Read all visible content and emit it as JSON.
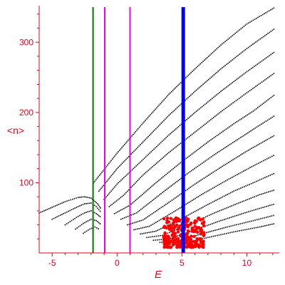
{
  "chart_data": {
    "type": "scatter",
    "title": "",
    "xlabel": "E",
    "ylabel": "<n>",
    "xlim": [
      -6.0,
      12.5
    ],
    "ylim": [
      0,
      352
    ],
    "xticks": [
      -5,
      0,
      5,
      10
    ],
    "yticks": [
      100,
      200,
      300
    ],
    "grid": false,
    "legend": "none",
    "colors": {
      "axis": "#e8001c",
      "points": "#000000",
      "highlight_points": "#ff0000",
      "line_green": "#007700",
      "line_magenta": "#ee00ee",
      "line_blue": "#0000ff"
    },
    "vertical_lines": [
      {
        "x": -1.85,
        "color": "#007700",
        "width": 2
      },
      {
        "x": -0.95,
        "color": "#ee00ee",
        "width": 2
      },
      {
        "x": 1.0,
        "color": "#ee00ee",
        "width": 2
      },
      {
        "x": 5.1,
        "color": "#0000ff",
        "width": 5
      }
    ],
    "series": [
      {
        "values": [
          [
            -1.8,
            100
          ],
          [
            0,
            142
          ],
          [
            2,
            185
          ],
          [
            4,
            226
          ],
          [
            6,
            262
          ],
          [
            8,
            296
          ],
          [
            10,
            326
          ],
          [
            12.2,
            350
          ]
        ]
      },
      {
        "values": [
          [
            -1.4,
            88
          ],
          [
            0,
            120
          ],
          [
            2,
            158
          ],
          [
            4,
            196
          ],
          [
            6,
            230
          ],
          [
            8,
            262
          ],
          [
            10,
            291
          ],
          [
            12.2,
            320
          ]
        ]
      },
      {
        "values": [
          [
            -1.0,
            76
          ],
          [
            0,
            98
          ],
          [
            2,
            133
          ],
          [
            4,
            168
          ],
          [
            6,
            200
          ],
          [
            8,
            230
          ],
          [
            10,
            258
          ],
          [
            12.2,
            287
          ]
        ]
      },
      {
        "values": [
          [
            -0.6,
            66
          ],
          [
            0.5,
            82
          ],
          [
            2,
            111
          ],
          [
            4,
            143
          ],
          [
            6,
            172
          ],
          [
            8,
            201
          ],
          [
            10,
            228
          ],
          [
            12.2,
            257
          ]
        ]
      },
      {
        "values": [
          [
            -0.2,
            56
          ],
          [
            1,
            68
          ],
          [
            3,
            100
          ],
          [
            5,
            130
          ],
          [
            7,
            158
          ],
          [
            9,
            184
          ],
          [
            10.5,
            202
          ],
          [
            12.2,
            226
          ]
        ]
      },
      {
        "values": [
          [
            0.3,
            48
          ],
          [
            1.5,
            57
          ],
          [
            3.5,
            86
          ],
          [
            5.5,
            114
          ],
          [
            7.5,
            140
          ],
          [
            9.5,
            164
          ],
          [
            11,
            182
          ],
          [
            12.2,
            196
          ]
        ]
      },
      {
        "values": [
          [
            0.8,
            40
          ],
          [
            2,
            47
          ],
          [
            4,
            72
          ],
          [
            6,
            98
          ],
          [
            8,
            122
          ],
          [
            10,
            145
          ],
          [
            12.2,
            168
          ]
        ]
      },
      {
        "values": [
          [
            1.3,
            33
          ],
          [
            2.5,
            38
          ],
          [
            4.5,
            60
          ],
          [
            6.5,
            83
          ],
          [
            8.5,
            104
          ],
          [
            10.5,
            124
          ],
          [
            12.2,
            140
          ]
        ]
      },
      {
        "values": [
          [
            1.8,
            27
          ],
          [
            3,
            31
          ],
          [
            5,
            49
          ],
          [
            7,
            69
          ],
          [
            9,
            88
          ],
          [
            11,
            104
          ],
          [
            12.2,
            114
          ]
        ]
      },
      {
        "values": [
          [
            2.3,
            22
          ],
          [
            3.5,
            25
          ],
          [
            5.5,
            40
          ],
          [
            7.5,
            57
          ],
          [
            9.5,
            72
          ],
          [
            11,
            83
          ],
          [
            12.2,
            90
          ]
        ]
      },
      {
        "values": [
          [
            2.8,
            18
          ],
          [
            4,
            20
          ],
          [
            6,
            33
          ],
          [
            8,
            46
          ],
          [
            10,
            58
          ],
          [
            12.2,
            70
          ]
        ]
      },
      {
        "values": [
          [
            3.3,
            15
          ],
          [
            4.5,
            16
          ],
          [
            6.5,
            27
          ],
          [
            8.5,
            37
          ],
          [
            10.5,
            46
          ],
          [
            12.2,
            54
          ]
        ]
      },
      {
        "values": [
          [
            3.8,
            12
          ],
          [
            5,
            13
          ],
          [
            7,
            22
          ],
          [
            9,
            30
          ],
          [
            11,
            37
          ],
          [
            12.2,
            42
          ]
        ]
      },
      {
        "values": [
          [
            -6,
            57
          ],
          [
            -5,
            65
          ],
          [
            -4,
            73
          ],
          [
            -3,
            79
          ],
          [
            -2.5,
            80
          ],
          [
            -2,
            78
          ],
          [
            -1.5,
            70
          ],
          [
            -1.2,
            62
          ]
        ]
      },
      {
        "values": [
          [
            -5,
            48
          ],
          [
            -4,
            57
          ],
          [
            -3,
            66
          ],
          [
            -2.5,
            70
          ],
          [
            -2,
            71
          ],
          [
            -1.6,
            66
          ],
          [
            -1.2,
            57
          ]
        ]
      },
      {
        "values": [
          [
            -4,
            40
          ],
          [
            -3,
            52
          ],
          [
            -2.5,
            57
          ],
          [
            -2,
            60
          ],
          [
            -1.6,
            56
          ],
          [
            -1.2,
            50
          ]
        ]
      },
      {
        "values": [
          [
            -3.2,
            34
          ],
          [
            -2.6,
            42
          ],
          [
            -2,
            48
          ],
          [
            -1.6,
            46
          ],
          [
            -1.2,
            40
          ]
        ]
      },
      {
        "values": [
          [
            -2.6,
            28
          ],
          [
            -2.1,
            34
          ],
          [
            -1.7,
            37
          ],
          [
            -1.3,
            33
          ]
        ]
      }
    ],
    "highlight_cluster": {
      "color": "#ff0000",
      "x_range": [
        3.6,
        6.8
      ],
      "y_range": [
        8,
        50
      ]
    }
  }
}
